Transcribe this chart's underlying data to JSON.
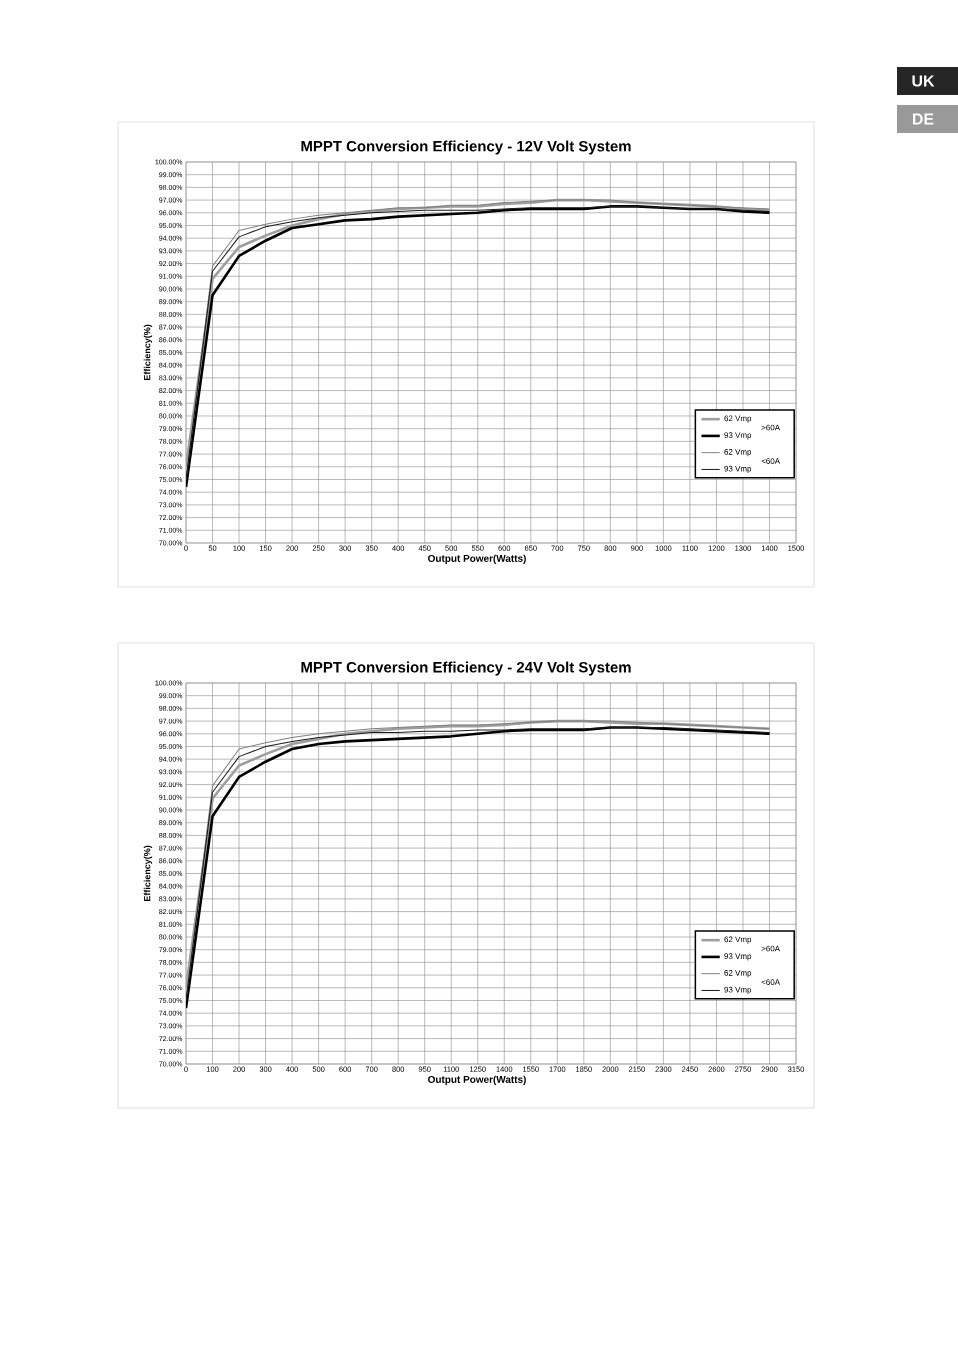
{
  "chart_data": [
    {
      "type": "line",
      "title": "MPPT Conversion Efficiency - 12V Volt System",
      "xlabel": "Output Power(Watts)",
      "ylabel": "Efficiency(%)",
      "categories": [
        "0",
        "50",
        "100",
        "150",
        "200",
        "250",
        "300",
        "350",
        "400",
        "450",
        "500",
        "550",
        "600",
        "650",
        "700",
        "750",
        "800",
        "900",
        "1000",
        "1100",
        "1200",
        "1300",
        "1400",
        "1500"
      ],
      "ylim": [
        70,
        100
      ],
      "yticks": [
        {
          "value": 70,
          "label": "70.00%"
        },
        {
          "value": 71,
          "label": "71.00%"
        },
        {
          "value": 72,
          "label": "72.00%"
        },
        {
          "value": 73,
          "label": "73.00%"
        },
        {
          "value": 74,
          "label": "74.00%"
        },
        {
          "value": 75,
          "label": "75.00%"
        },
        {
          "value": 76,
          "label": "76.00%"
        },
        {
          "value": 77,
          "label": "77.00%"
        },
        {
          "value": 78,
          "label": "78.00%"
        },
        {
          "value": 79,
          "label": "79.00%"
        },
        {
          "value": 80,
          "label": "80.00%"
        },
        {
          "value": 81,
          "label": "81.00%"
        },
        {
          "value": 82,
          "label": "82.00%"
        },
        {
          "value": 83,
          "label": "83.00%"
        },
        {
          "value": 84,
          "label": "84.00%"
        },
        {
          "value": 85,
          "label": "85.00%"
        },
        {
          "value": 86,
          "label": "86.00%"
        },
        {
          "value": 87,
          "label": "87.00%"
        },
        {
          "value": 88,
          "label": "88.00%"
        },
        {
          "value": 89,
          "label": "89.00%"
        },
        {
          "value": 90,
          "label": "90.00%"
        },
        {
          "value": 91,
          "label": "91.00%"
        },
        {
          "value": 92,
          "label": "92.00%"
        },
        {
          "value": 93,
          "label": "93.00%"
        },
        {
          "value": 94,
          "label": "94.00%"
        },
        {
          "value": 95,
          "label": "95.00%"
        },
        {
          "value": 96,
          "label": "96.00%"
        },
        {
          "value": 97,
          "label": "97.00%"
        },
        {
          "value": 98,
          "label": "98.00%"
        },
        {
          "value": 99,
          "label": "99.00%"
        },
        {
          "value": 100,
          "label": "100.00%"
        }
      ],
      "grid": true,
      "legend": "bottom right",
      "annotations": [
        ">60A",
        "<60A",
        "UK",
        "DE"
      ],
      "series": [
        {
          "name": "62 Vmp",
          "color": "#9e9e9e",
          "values": [
            76.0,
            90.8,
            93.3,
            94.2,
            95.0,
            95.5,
            95.9,
            96.1,
            96.3,
            96.4,
            96.5,
            96.5,
            96.7,
            96.8,
            97.0,
            97.0,
            96.9,
            96.8,
            96.7,
            96.6,
            96.5,
            96.3,
            96.2,
            null
          ]
        },
        {
          "name": "93 Vmp",
          "color": "#000000",
          "values": [
            74.4,
            89.5,
            92.6,
            93.8,
            94.8,
            95.1,
            95.4,
            95.5,
            95.7,
            95.8,
            95.9,
            96.0,
            96.2,
            96.3,
            96.3,
            96.3,
            96.5,
            96.5,
            96.4,
            96.3,
            96.3,
            96.1,
            96.0,
            null
          ]
        },
        {
          "name": "62 Vmp",
          "color": "#808080",
          "values": [
            75.0,
            91.8,
            94.6,
            95.1,
            95.5,
            95.8,
            96.0,
            96.2,
            96.4,
            96.4,
            96.6,
            96.6,
            96.8,
            96.9,
            97.0,
            97.0,
            97.0,
            96.8,
            96.7,
            96.6,
            96.5,
            96.4,
            96.3,
            null
          ]
        },
        {
          "name": "93 Vmp",
          "color": "#1a1a1a",
          "values": [
            75.0,
            91.4,
            94.1,
            94.9,
            95.3,
            95.6,
            95.8,
            96.0,
            96.1,
            96.2,
            96.2,
            96.2,
            96.3,
            96.4,
            96.4,
            96.4,
            96.5,
            96.5,
            96.4,
            96.3,
            96.3,
            96.2,
            96.1,
            null
          ]
        }
      ]
    },
    {
      "type": "line",
      "title": "MPPT Conversion Efficiency - 24V Volt System",
      "xlabel": "Output Power(Watts)",
      "ylabel": "Efficiency(%)",
      "categories": [
        "0",
        "100",
        "200",
        "300",
        "400",
        "500",
        "600",
        "700",
        "800",
        "950",
        "1100",
        "1250",
        "1400",
        "1550",
        "1700",
        "1850",
        "2000",
        "2150",
        "2300",
        "2450",
        "2600",
        "2750",
        "2900",
        "3150"
      ],
      "ylim": [
        70,
        100
      ],
      "yticks": [
        {
          "value": 70,
          "label": "70.00%"
        },
        {
          "value": 71,
          "label": "71.00%"
        },
        {
          "value": 72,
          "label": "72.00%"
        },
        {
          "value": 73,
          "label": "73.00%"
        },
        {
          "value": 74,
          "label": "74.00%"
        },
        {
          "value": 75,
          "label": "75.00%"
        },
        {
          "value": 76,
          "label": "76.00%"
        },
        {
          "value": 77,
          "label": "77.00%"
        },
        {
          "value": 78,
          "label": "78.00%"
        },
        {
          "value": 79,
          "label": "79.00%"
        },
        {
          "value": 80,
          "label": "80.00%"
        },
        {
          "value": 81,
          "label": "81.00%"
        },
        {
          "value": 82,
          "label": "82.00%"
        },
        {
          "value": 83,
          "label": "83.00%"
        },
        {
          "value": 84,
          "label": "84.00%"
        },
        {
          "value": 85,
          "label": "85.00%"
        },
        {
          "value": 86,
          "label": "86.00%"
        },
        {
          "value": 87,
          "label": "87.00%"
        },
        {
          "value": 88,
          "label": "88.00%"
        },
        {
          "value": 89,
          "label": "89.00%"
        },
        {
          "value": 90,
          "label": "90.00%"
        },
        {
          "value": 91,
          "label": "91.00%"
        },
        {
          "value": 92,
          "label": "92.00%"
        },
        {
          "value": 93,
          "label": "93.00%"
        },
        {
          "value": 94,
          "label": "94.00%"
        },
        {
          "value": 95,
          "label": "95.00%"
        },
        {
          "value": 96,
          "label": "96.00%"
        },
        {
          "value": 97,
          "label": "97.00%"
        },
        {
          "value": 98,
          "label": "98.00%"
        },
        {
          "value": 99,
          "label": "99.00%"
        },
        {
          "value": 100,
          "label": "100.00%"
        }
      ],
      "grid": true,
      "legend": "bottom right",
      "annotations": [
        ">60A",
        "<60A"
      ],
      "series": [
        {
          "name": "62 Vmp",
          "color": "#9e9e9e",
          "values": [
            76.0,
            90.9,
            93.5,
            94.4,
            95.2,
            95.6,
            96.0,
            96.2,
            96.4,
            96.5,
            96.6,
            96.6,
            96.7,
            96.9,
            97.0,
            97.0,
            96.9,
            96.8,
            96.8,
            96.7,
            96.6,
            96.5,
            96.4,
            null
          ]
        },
        {
          "name": "93 Vmp",
          "color": "#000000",
          "values": [
            74.4,
            89.5,
            92.6,
            93.8,
            94.8,
            95.2,
            95.4,
            95.5,
            95.6,
            95.7,
            95.8,
            96.0,
            96.2,
            96.3,
            96.3,
            96.3,
            96.5,
            96.5,
            96.4,
            96.3,
            96.2,
            96.1,
            96.0,
            null
          ]
        },
        {
          "name": "62 Vmp",
          "color": "#808080",
          "values": [
            75.0,
            91.9,
            94.8,
            95.3,
            95.7,
            96.0,
            96.2,
            96.4,
            96.5,
            96.6,
            96.7,
            96.7,
            96.8,
            96.9,
            97.0,
            97.0,
            97.0,
            96.9,
            96.8,
            96.7,
            96.6,
            96.5,
            96.4,
            null
          ]
        },
        {
          "name": "93 Vmp",
          "color": "#1a1a1a",
          "values": [
            75.0,
            91.4,
            94.2,
            95.0,
            95.4,
            95.7,
            95.9,
            96.1,
            96.1,
            96.2,
            96.2,
            96.3,
            96.3,
            96.4,
            96.4,
            96.4,
            96.5,
            96.5,
            96.5,
            96.4,
            96.3,
            96.2,
            96.1,
            null
          ]
        }
      ]
    }
  ]
}
